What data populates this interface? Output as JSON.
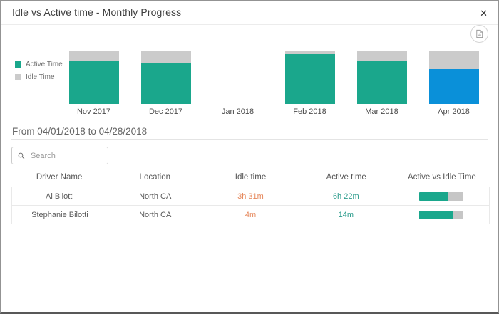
{
  "dialog": {
    "title": "Idle vs Active time - Monthly Progress",
    "close_glyph": "✕"
  },
  "icons": {
    "close": "x-close-glyph",
    "export": "document-export-glyph",
    "search": "magnifier-glyph"
  },
  "colors": {
    "active": "#1aa78c",
    "idle": "#cbcbcb",
    "selected": "#0a90d9",
    "idle_text": "#e6885c",
    "active_text": "#2e9d8d",
    "progress_track": "#c6c6c6"
  },
  "legend": [
    {
      "label": "Active Time",
      "color": "#1aa78c"
    },
    {
      "label": "Idle Time",
      "color": "#cbcbcb"
    }
  ],
  "chart_data": {
    "type": "bar",
    "stacked": true,
    "normalized_percent": true,
    "categories": [
      "Nov 2017",
      "Dec 2017",
      "Jan 2018",
      "Feb 2018",
      "Mar 2018",
      "Apr 2018"
    ],
    "series": [
      {
        "name": "Active Time",
        "values": [
          82,
          79,
          0,
          94,
          82,
          66
        ]
      },
      {
        "name": "Idle Time",
        "values": [
          18,
          21,
          0,
          6,
          18,
          34
        ]
      }
    ],
    "selected_category": "Apr 2018",
    "selected_color": "#0a90d9",
    "legend_position": "left",
    "grid": false
  },
  "date_range": "From 04/01/2018 to 04/28/2018",
  "search": {
    "placeholder": "Search"
  },
  "table": {
    "headers": [
      "Driver Name",
      "Location",
      "Idle time",
      "Active time",
      "Active vs Idle Time"
    ],
    "rows": [
      {
        "driver": "Al Bilotti",
        "location": "North CA",
        "idle": "3h 31m",
        "active": "6h 22m",
        "active_pct": 64
      },
      {
        "driver": "Stephanie Bilotti",
        "location": "North CA",
        "idle": "4m",
        "active": "14m",
        "active_pct": 78
      }
    ]
  }
}
